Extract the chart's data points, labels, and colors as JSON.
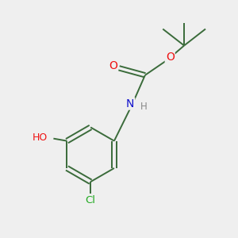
{
  "background_color": "#efefef",
  "bond_color": "#3a6b3a",
  "atom_colors": {
    "O": "#ee1111",
    "N": "#1111cc",
    "Cl": "#22aa22",
    "H": "#888888"
  },
  "lw": 1.4,
  "fig_width": 3.0,
  "fig_height": 3.0,
  "dpi": 100,
  "xlim": [
    0,
    10
  ],
  "ylim": [
    0,
    10
  ]
}
